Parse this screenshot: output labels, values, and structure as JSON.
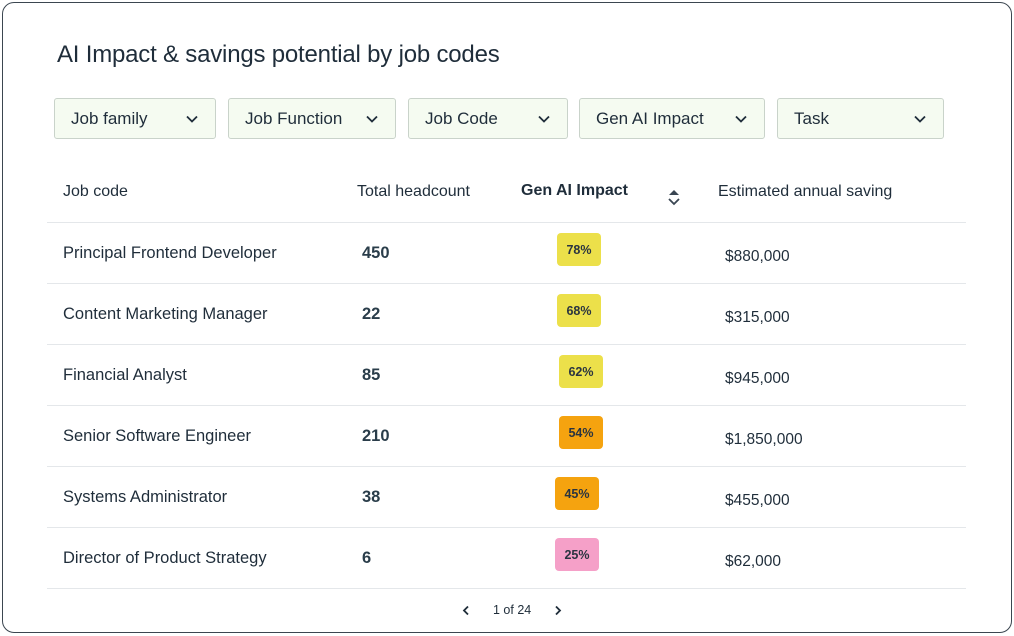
{
  "title": "AI Impact & savings potential by job codes",
  "filters": [
    {
      "label": "Job family"
    },
    {
      "label": "Job Function"
    },
    {
      "label": "Job Code"
    },
    {
      "label": "Gen AI Impact"
    },
    {
      "label": "Task"
    }
  ],
  "table": {
    "headers": {
      "job_code": "Job code",
      "headcount": "Total headcount",
      "impact": "Gen AI Impact",
      "saving": "Estimated annual saving"
    },
    "rows": [
      {
        "job_code": "Principal Frontend Developer",
        "headcount": "450",
        "impact": "78%",
        "saving": "$880,000"
      },
      {
        "job_code": "Content Marketing Manager",
        "headcount": "22",
        "impact": "68%",
        "saving": "$315,000"
      },
      {
        "job_code": "Financial Analyst",
        "headcount": "85",
        "impact": "62%",
        "saving": "$945,000"
      },
      {
        "job_code": "Senior Software Engineer",
        "headcount": "210",
        "impact": "54%",
        "saving": "$1,850,000"
      },
      {
        "job_code": "Systems Administrator",
        "headcount": "38",
        "impact": "45%",
        "saving": "$455,000"
      },
      {
        "job_code": "Director of Product Strategy",
        "headcount": "6",
        "impact": "25%",
        "saving": "$62,000"
      }
    ]
  },
  "impact_colors": {
    "high": "#ece04a",
    "medium": "#f5a30f",
    "low": "#f5a0c8"
  },
  "pagination": {
    "label": "1 of 24"
  }
}
